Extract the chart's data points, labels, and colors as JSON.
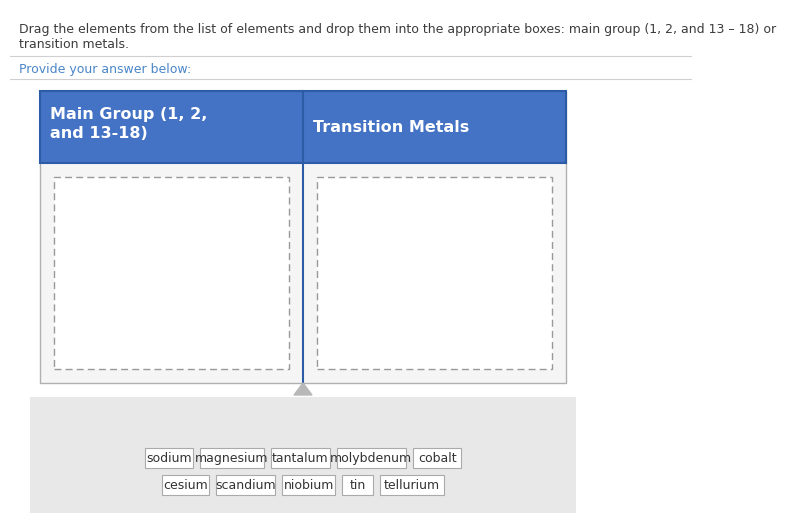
{
  "title_line1": "Drag the elements from the list of elements and drop them into the appropriate boxes: main group (1, 2, and 13 – 18) or",
  "title_line2": "transition metals.",
  "title_color": "#3c3c3c",
  "title_fontsize": 9.0,
  "provide_text": "Provide your answer below:",
  "provide_color": "#4a86c8",
  "provide_fontsize": 9.0,
  "header_color": "#4472c4",
  "header_text_color": "#ffffff",
  "header_left": "Main Group (1, 2,\nand 13-18)",
  "header_right": "Transition Metals",
  "header_fontsize": 11.5,
  "elements_row1": [
    "sodium",
    "magnesium",
    "tantalum",
    "molybdenum",
    "cobalt"
  ],
  "elements_row2": [
    "cesium",
    "scandium",
    "niobium",
    "tin",
    "tellurium"
  ],
  "element_fontsize": 9.0,
  "bg_color": "#ffffff",
  "outer_box_edge_color": "#b0b0b0",
  "elements_area_color": "#e8e8e8",
  "divider_color": "#d0d0d0",
  "dashed_box_color": "#999999",
  "triangle_color": "#b8b8b8"
}
